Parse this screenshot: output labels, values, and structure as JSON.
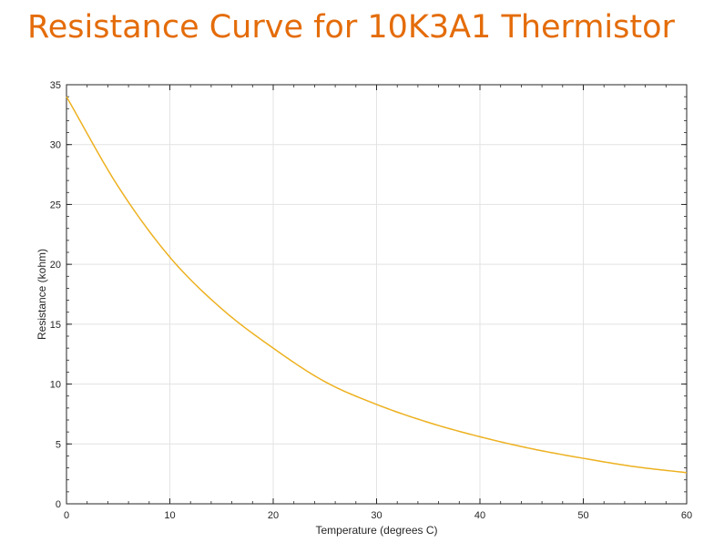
{
  "slide": {
    "title": "Resistance Curve for 10K3A1 Thermistor",
    "title_color": "#E46C0A"
  },
  "chart_data": {
    "type": "line",
    "title": "",
    "xlabel": "Temperature (degrees C)",
    "ylabel": "Resistance (kohm)",
    "xlim": [
      0,
      60
    ],
    "ylim": [
      0,
      35
    ],
    "xticks": [
      0,
      10,
      20,
      30,
      40,
      50,
      60
    ],
    "yticks": [
      0,
      5,
      10,
      15,
      20,
      25,
      30,
      35
    ],
    "grid": true,
    "legend": "none",
    "series": [
      {
        "name": "10K3A1",
        "color": "#EDB120",
        "x": [
          0,
          5,
          10,
          15,
          20,
          25,
          30,
          35,
          40,
          45,
          50,
          55,
          60
        ],
        "values": [
          34.0,
          26.5,
          20.6,
          16.3,
          13.0,
          10.2,
          8.3,
          6.8,
          5.6,
          4.6,
          3.8,
          3.1,
          2.6
        ]
      }
    ]
  }
}
